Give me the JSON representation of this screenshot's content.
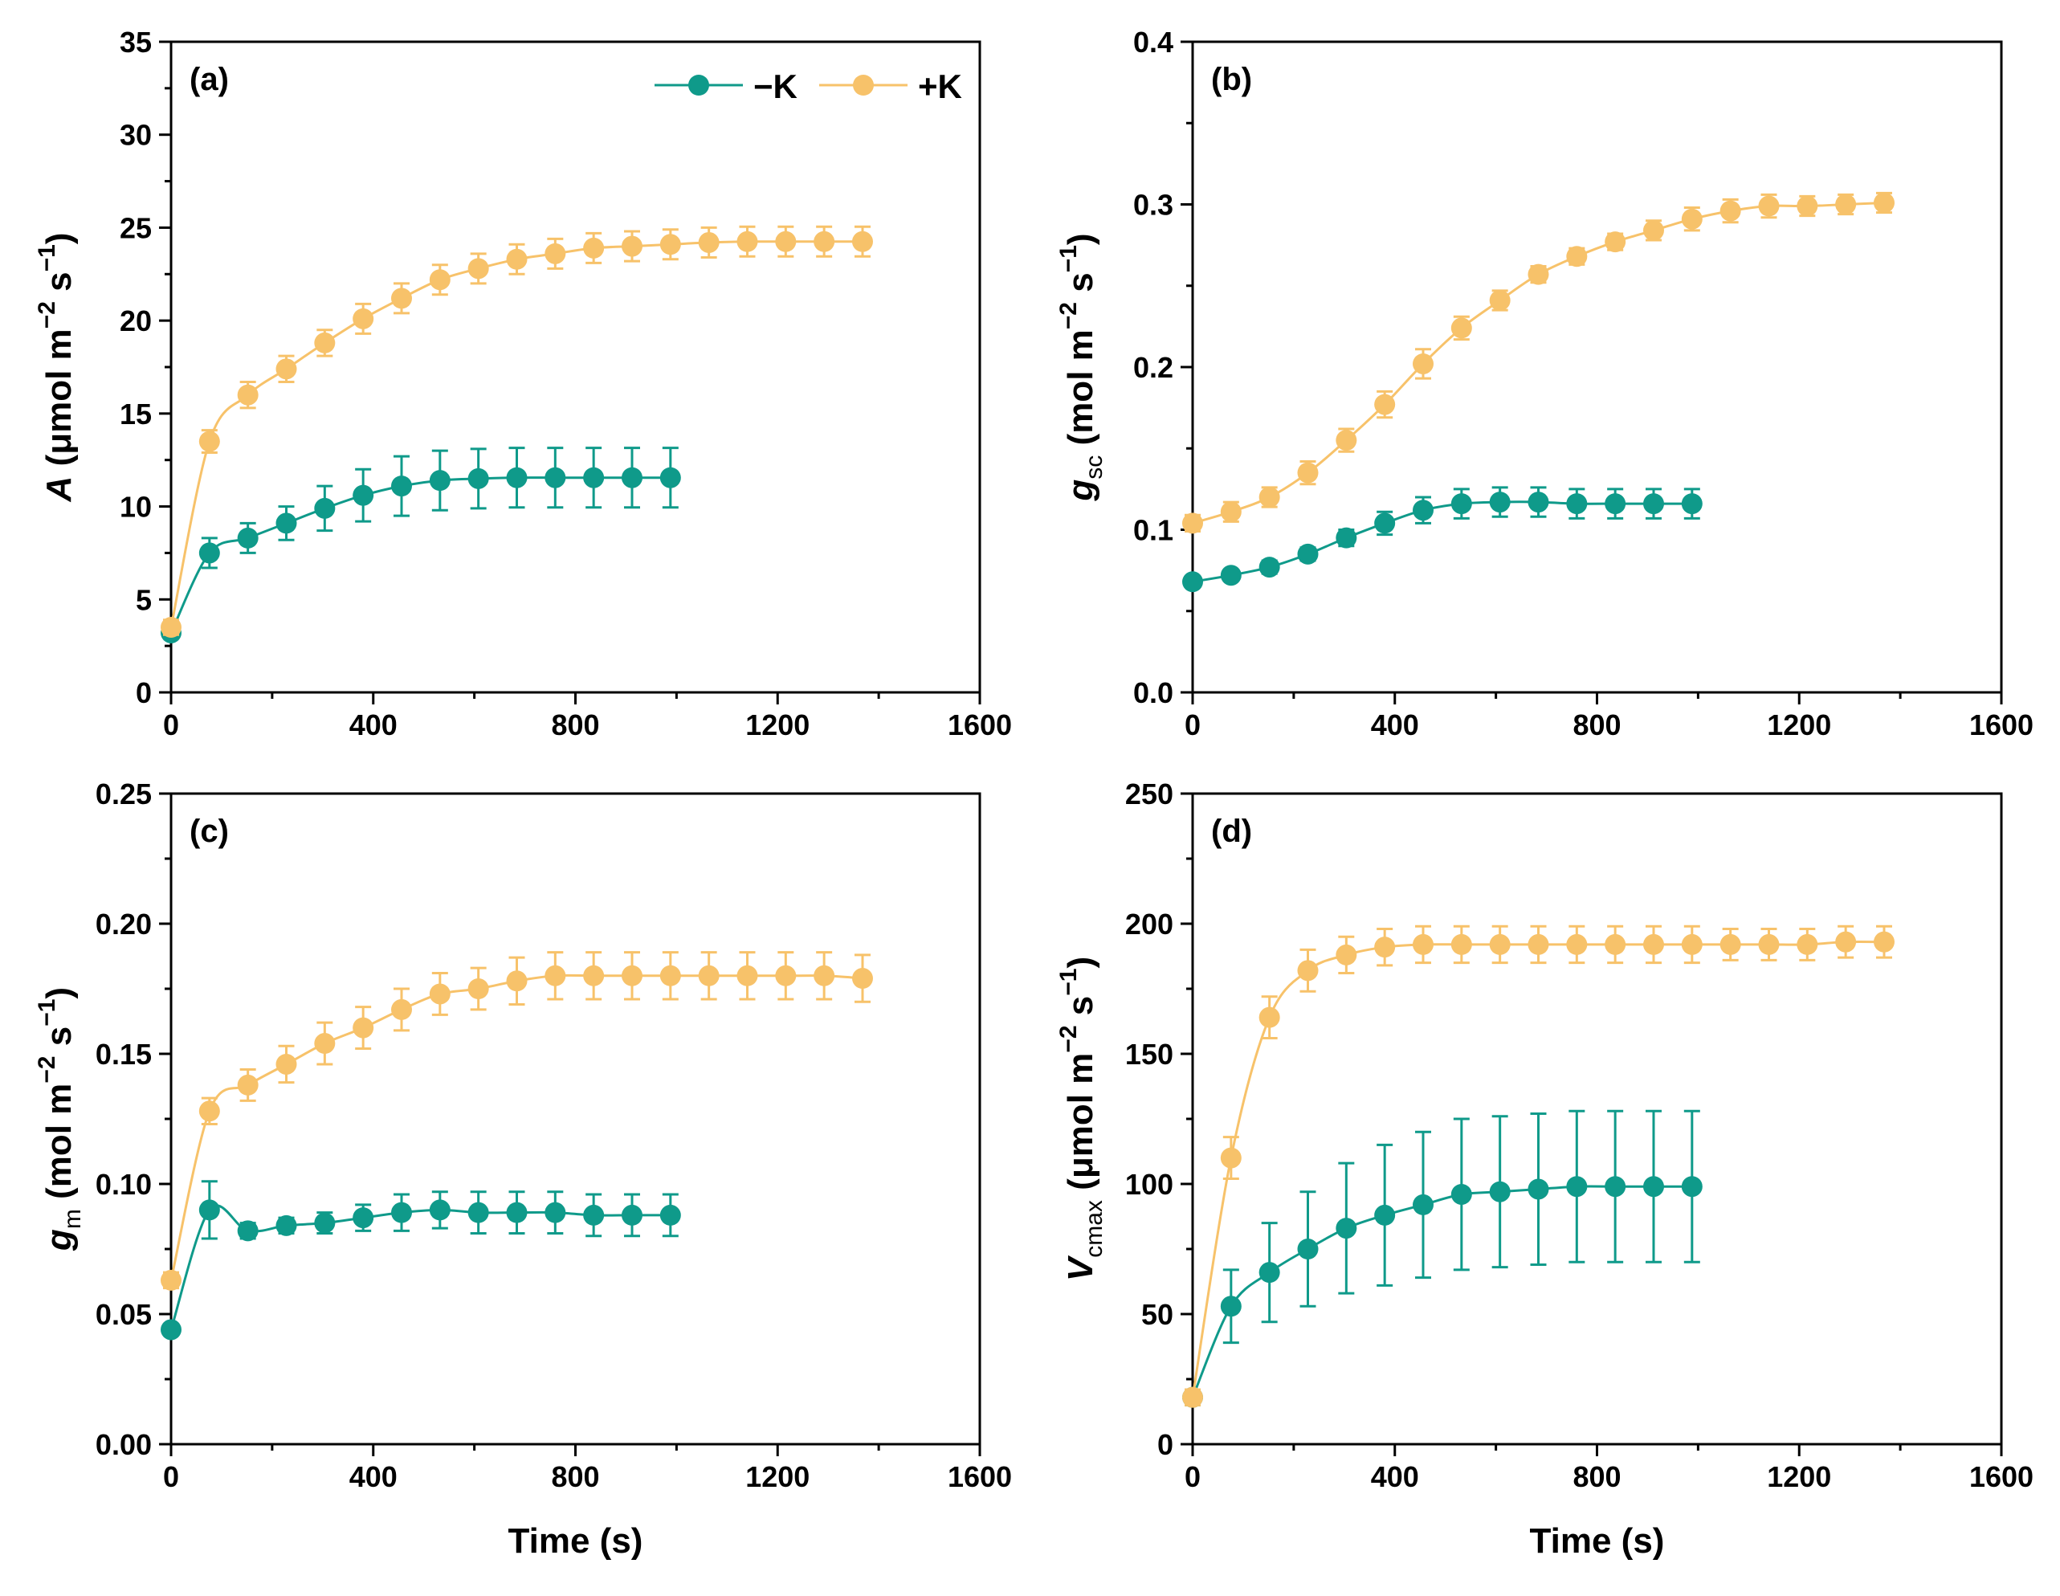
{
  "legend": {
    "series": [
      {
        "name": "−K",
        "color": "#0f9a8a"
      },
      {
        "name": "+K",
        "color": "#f7c26a"
      }
    ]
  },
  "chart_data": [
    {
      "type": "line",
      "panel_label": "(a)",
      "xlabel": "",
      "ylabel_main": "A",
      "ylabel_sub": "",
      "ylabel_unit": " (μmol m",
      "ylabel_sup1": "−2",
      "ylabel_mid": " s",
      "ylabel_sup2": "−1",
      "ylabel_end": ")",
      "xlim": [
        0,
        1600
      ],
      "ylim": [
        0,
        35
      ],
      "xticks": [
        0,
        400,
        800,
        1200,
        1600
      ],
      "xtick_labels": [
        "0",
        "400",
        "800",
        "1200",
        "1600"
      ],
      "yticks": [
        0,
        5,
        10,
        15,
        20,
        25,
        30,
        35
      ],
      "ytick_labels": [
        "0",
        "5",
        "10",
        "15",
        "20",
        "25",
        "30",
        "35"
      ],
      "x_minor_step": 200,
      "y_minor_step": 2.5,
      "series": [
        {
          "name": "−K",
          "color": "#0f9a8a",
          "x": [
            0,
            76,
            152,
            228,
            304,
            380,
            456,
            532,
            608,
            684,
            760,
            836,
            912,
            988
          ],
          "y": [
            3.2,
            7.5,
            8.3,
            9.1,
            9.9,
            10.6,
            11.1,
            11.4,
            11.5,
            11.55,
            11.55,
            11.55,
            11.55,
            11.55
          ],
          "err": [
            0.3,
            0.8,
            0.8,
            0.9,
            1.2,
            1.4,
            1.6,
            1.6,
            1.6,
            1.6,
            1.6,
            1.6,
            1.6,
            1.6
          ]
        },
        {
          "name": "+K",
          "color": "#f7c26a",
          "x": [
            0,
            76,
            152,
            228,
            304,
            380,
            456,
            532,
            608,
            684,
            760,
            836,
            912,
            988,
            1064,
            1140,
            1216,
            1292,
            1368
          ],
          "y": [
            3.5,
            13.5,
            16.0,
            17.4,
            18.8,
            20.1,
            21.2,
            22.2,
            22.8,
            23.3,
            23.6,
            23.9,
            24.0,
            24.1,
            24.2,
            24.25,
            24.25,
            24.25,
            24.25
          ],
          "err": [
            0.4,
            0.6,
            0.7,
            0.7,
            0.7,
            0.8,
            0.8,
            0.8,
            0.8,
            0.8,
            0.8,
            0.8,
            0.8,
            0.8,
            0.8,
            0.8,
            0.8,
            0.8,
            0.8
          ]
        }
      ]
    },
    {
      "type": "line",
      "panel_label": "(b)",
      "xlabel": "",
      "ylabel_main": "g",
      "ylabel_sub": "sc",
      "ylabel_unit": " (mol m",
      "ylabel_sup1": "−2",
      "ylabel_mid": " s",
      "ylabel_sup2": "−1",
      "ylabel_end": ")",
      "xlim": [
        0,
        1600
      ],
      "ylim": [
        0,
        0.4
      ],
      "xticks": [
        0,
        400,
        800,
        1200,
        1600
      ],
      "xtick_labels": [
        "0",
        "400",
        "800",
        "1200",
        "1600"
      ],
      "yticks": [
        0,
        0.1,
        0.2,
        0.3,
        0.4
      ],
      "ytick_labels": [
        "0.0",
        "0.1",
        "0.2",
        "0.3",
        "0.4"
      ],
      "x_minor_step": 200,
      "y_minor_step": 0.05,
      "series": [
        {
          "name": "−K",
          "color": "#0f9a8a",
          "x": [
            0,
            76,
            152,
            228,
            304,
            380,
            456,
            532,
            608,
            684,
            760,
            836,
            912,
            988
          ],
          "y": [
            0.068,
            0.072,
            0.077,
            0.085,
            0.095,
            0.104,
            0.112,
            0.116,
            0.117,
            0.117,
            0.116,
            0.116,
            0.116,
            0.116
          ],
          "err": [
            0.003,
            0.003,
            0.004,
            0.004,
            0.005,
            0.007,
            0.008,
            0.009,
            0.009,
            0.009,
            0.009,
            0.009,
            0.009,
            0.009
          ]
        },
        {
          "name": "+K",
          "color": "#f7c26a",
          "x": [
            0,
            76,
            152,
            228,
            304,
            380,
            456,
            532,
            608,
            684,
            760,
            836,
            912,
            988,
            1064,
            1140,
            1216,
            1292,
            1368
          ],
          "y": [
            0.104,
            0.111,
            0.12,
            0.135,
            0.155,
            0.177,
            0.202,
            0.224,
            0.241,
            0.257,
            0.268,
            0.277,
            0.284,
            0.291,
            0.296,
            0.299,
            0.299,
            0.3,
            0.301
          ],
          "err": [
            0.005,
            0.006,
            0.006,
            0.007,
            0.007,
            0.008,
            0.009,
            0.007,
            0.006,
            0.005,
            0.005,
            0.005,
            0.006,
            0.007,
            0.007,
            0.007,
            0.006,
            0.006,
            0.006
          ]
        }
      ]
    },
    {
      "type": "line",
      "panel_label": "(c)",
      "xlabel": "Time (s)",
      "ylabel_main": "g",
      "ylabel_sub": "m",
      "ylabel_unit": " (mol m",
      "ylabel_sup1": "−2",
      "ylabel_mid": " s",
      "ylabel_sup2": "−1",
      "ylabel_end": ")",
      "xlim": [
        0,
        1600
      ],
      "ylim": [
        0,
        0.25
      ],
      "xticks": [
        0,
        400,
        800,
        1200,
        1600
      ],
      "xtick_labels": [
        "0",
        "400",
        "800",
        "1200",
        "1600"
      ],
      "yticks": [
        0,
        0.05,
        0.1,
        0.15,
        0.2,
        0.25
      ],
      "ytick_labels": [
        "0.00",
        "0.05",
        "0.10",
        "0.15",
        "0.20",
        "0.25"
      ],
      "x_minor_step": 200,
      "y_minor_step": 0.025,
      "series": [
        {
          "name": "−K",
          "color": "#0f9a8a",
          "x": [
            0,
            76,
            152,
            228,
            304,
            380,
            456,
            532,
            608,
            684,
            760,
            836,
            912,
            988
          ],
          "y": [
            0.044,
            0.09,
            0.082,
            0.084,
            0.085,
            0.087,
            0.089,
            0.09,
            0.089,
            0.089,
            0.089,
            0.088,
            0.088,
            0.088
          ],
          "err": [
            0.002,
            0.011,
            0.003,
            0.003,
            0.004,
            0.005,
            0.007,
            0.007,
            0.008,
            0.008,
            0.008,
            0.008,
            0.008,
            0.008
          ]
        },
        {
          "name": "+K",
          "color": "#f7c26a",
          "x": [
            0,
            76,
            152,
            228,
            304,
            380,
            456,
            532,
            608,
            684,
            760,
            836,
            912,
            988,
            1064,
            1140,
            1216,
            1292,
            1368
          ],
          "y": [
            0.063,
            0.128,
            0.138,
            0.146,
            0.154,
            0.16,
            0.167,
            0.173,
            0.175,
            0.178,
            0.18,
            0.18,
            0.18,
            0.18,
            0.18,
            0.18,
            0.18,
            0.18,
            0.179
          ],
          "err": [
            0.003,
            0.005,
            0.006,
            0.007,
            0.008,
            0.008,
            0.008,
            0.008,
            0.008,
            0.009,
            0.009,
            0.009,
            0.009,
            0.009,
            0.009,
            0.009,
            0.009,
            0.009,
            0.009
          ]
        }
      ]
    },
    {
      "type": "line",
      "panel_label": "(d)",
      "xlabel": "Time (s)",
      "ylabel_main": "V",
      "ylabel_sub": "cmax",
      "ylabel_unit": " (μmol m",
      "ylabel_sup1": "−2",
      "ylabel_mid": " s",
      "ylabel_sup2": "−1",
      "ylabel_end": ")",
      "xlim": [
        0,
        1600
      ],
      "ylim": [
        0,
        250
      ],
      "xticks": [
        0,
        400,
        800,
        1200,
        1600
      ],
      "xtick_labels": [
        "0",
        "400",
        "800",
        "1200",
        "1600"
      ],
      "yticks": [
        0,
        50,
        100,
        150,
        200,
        250
      ],
      "ytick_labels": [
        "0",
        "50",
        "100",
        "150",
        "200",
        "250"
      ],
      "x_minor_step": 200,
      "y_minor_step": 25,
      "series": [
        {
          "name": "−K",
          "color": "#0f9a8a",
          "x": [
            0,
            76,
            152,
            228,
            304,
            380,
            456,
            532,
            608,
            684,
            760,
            836,
            912,
            988
          ],
          "y": [
            18,
            53,
            66,
            75,
            83,
            88,
            92,
            96,
            97,
            98,
            99,
            99,
            99,
            99
          ],
          "err": [
            3,
            14,
            19,
            22,
            25,
            27,
            28,
            29,
            29,
            29,
            29,
            29,
            29,
            29
          ]
        },
        {
          "name": "+K",
          "color": "#f7c26a",
          "x": [
            0,
            76,
            152,
            228,
            304,
            380,
            456,
            532,
            608,
            684,
            760,
            836,
            912,
            988,
            1064,
            1140,
            1216,
            1292,
            1368
          ],
          "y": [
            18,
            110,
            164,
            182,
            188,
            191,
            192,
            192,
            192,
            192,
            192,
            192,
            192,
            192,
            192,
            192,
            192,
            193,
            193
          ],
          "err": [
            3,
            8,
            8,
            8,
            7,
            7,
            7,
            7,
            7,
            7,
            7,
            7,
            7,
            7,
            6,
            6,
            6,
            6,
            6
          ]
        }
      ]
    }
  ]
}
